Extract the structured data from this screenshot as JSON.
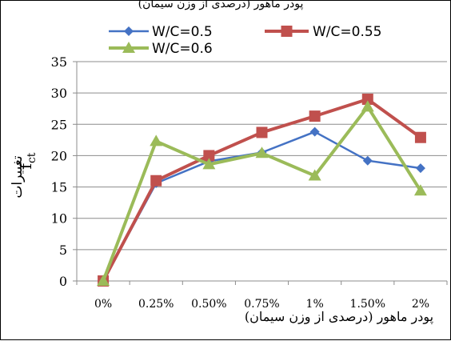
{
  "page_header": "پودر ماهور (درصدی از وزن سیمان)",
  "chart_data": {
    "type": "line",
    "categories": [
      "0%",
      "0.25%",
      "0.50%",
      "0.75%",
      "1%",
      "1.50%",
      "2%"
    ],
    "series": [
      {
        "name": "W/C=0.5",
        "color": "#4472C4",
        "marker": "diamond",
        "values": [
          0,
          15.6,
          19.1,
          20.5,
          23.8,
          19.2,
          18.0
        ]
      },
      {
        "name": "W/C=0.55",
        "color": "#C0504D",
        "marker": "square",
        "values": [
          0,
          16.0,
          20.0,
          23.7,
          26.3,
          29.0,
          22.9
        ]
      },
      {
        "name": "W/C=0.6",
        "color": "#9BBB59",
        "marker": "triangle",
        "values": [
          0,
          22.3,
          18.6,
          20.4,
          16.8,
          27.8,
          14.4
        ]
      }
    ],
    "ylim": [
      0,
      35
    ],
    "yticks": [
      0,
      5,
      10,
      15,
      20,
      25,
      30,
      35
    ],
    "ylabel_persian": "تغییرات",
    "ylabel_symbol": "f",
    "ylabel_subscript": "ct",
    "xlabel": "پودر ماهور (درصدی از وزن سیمان)",
    "grid": "horizontal",
    "legend_position": "top"
  }
}
